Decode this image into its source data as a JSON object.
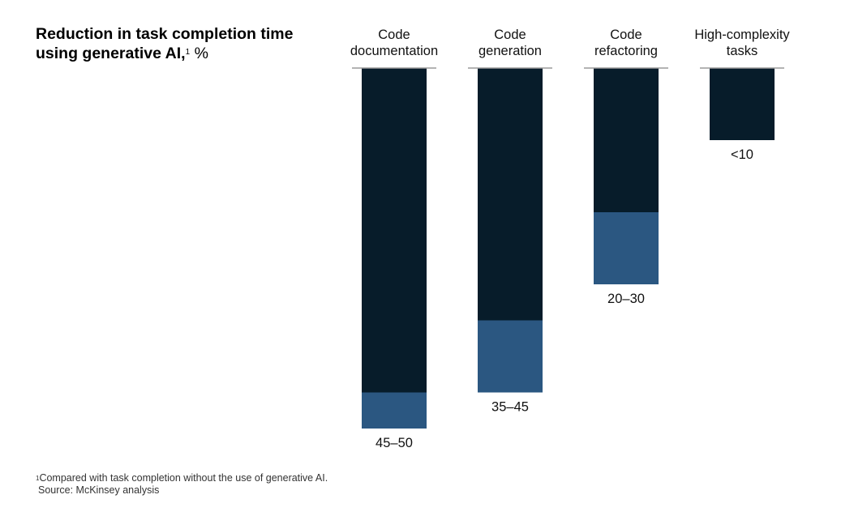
{
  "chart_data": {
    "type": "bar",
    "title_main": "Reduction in task completion time using generative AI,",
    "title_footnote_ref": "1",
    "title_unit": "%",
    "categories": [
      [
        "Code",
        "documentation"
      ],
      [
        "Code",
        "generation"
      ],
      [
        "Code",
        "refactoring"
      ],
      [
        "High-complexity",
        "tasks"
      ]
    ],
    "range_low": [
      45,
      35,
      20,
      0
    ],
    "range_high": [
      50,
      45,
      30,
      10
    ],
    "value_labels": [
      "45–50",
      "35–45",
      "20–30",
      "<10"
    ],
    "ylim": [
      0,
      50
    ],
    "orientation": "bars hang downward from top baseline",
    "colors": {
      "base": "#071c2a",
      "range": "#2b5781",
      "baseline": "#9a9a9a"
    }
  },
  "footnote": {
    "ref": "1",
    "text": "Compared with task completion without the use of generative AI.",
    "source": "Source: McKinsey analysis"
  }
}
